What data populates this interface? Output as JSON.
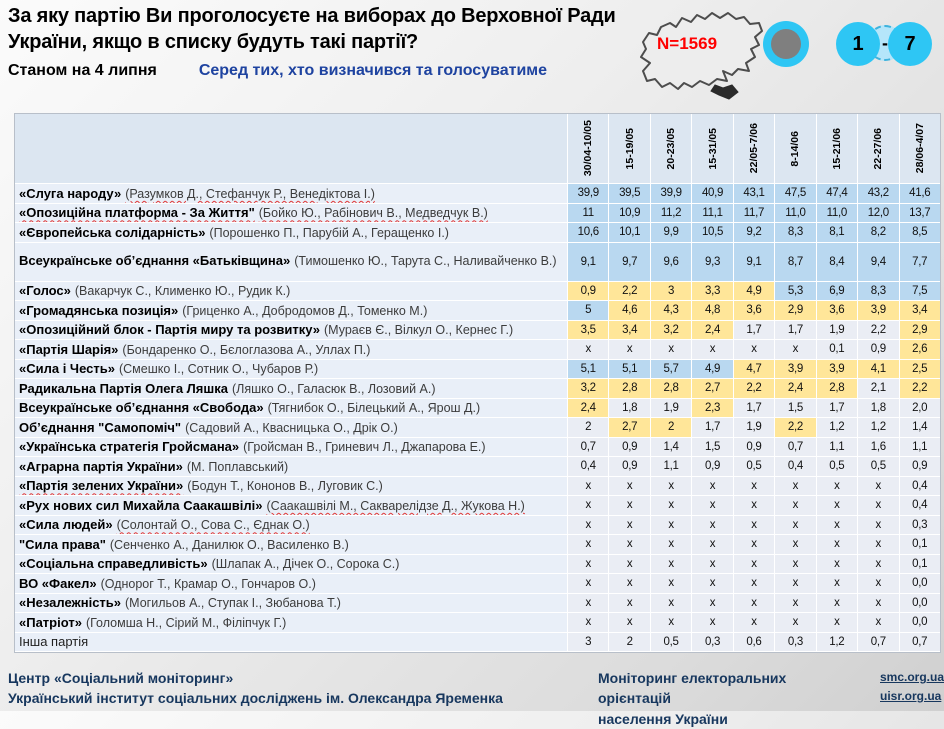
{
  "header": {
    "title": "За яку партію Ви проголосуєте на виборах до Верховної Ради України, якщо в списку будуть такі партії?",
    "date_note": "Станом на 4 липня",
    "subtitle": "Серед тих, хто визначився та голосуватиме",
    "sample_label": "N=1569",
    "wave_start": "1",
    "wave_dash": "-",
    "wave_end": "7"
  },
  "table": {
    "columns": [
      "30/04-10/05",
      "15-19/05",
      "20-23/05",
      "15-31/05",
      "22/05-7/06",
      "8-14/06",
      "15-21/06",
      "22-27/06",
      "28/06-4/07"
    ],
    "rows": [
      {
        "party": "«Слуга народу»",
        "leaders": "(Разумков Д.,  Стефанчук Р., Венедіктова І.)",
        "wavy_leaders": true,
        "values": [
          "39,9",
          "39,5",
          "39,9",
          "40,9",
          "43,1",
          "47,5",
          "47,4",
          "43,2",
          "41,6"
        ],
        "colors": [
          "b",
          "b",
          "b",
          "b",
          "b",
          "b",
          "b",
          "b",
          "b"
        ]
      },
      {
        "party": "«Опозиційна платформа - За Життя\"",
        "leaders": "(Бойко Ю., Рабінович В.,  Медведчук В.)",
        "wavy_name": true,
        "wavy_leaders": true,
        "values": [
          "11",
          "10,9",
          "11,2",
          "11,1",
          "11,7",
          "11,0",
          "11,0",
          "12,0",
          "13,7"
        ],
        "colors": [
          "b",
          "b",
          "b",
          "b",
          "b",
          "b",
          "b",
          "b",
          "b"
        ]
      },
      {
        "party": "«Європейська солідарність»",
        "leaders": "(Порошенко П., Парубій А., Геращенко І.)",
        "values": [
          "10,6",
          "10,1",
          "9,9",
          "10,5",
          "9,2",
          "8,3",
          "8,1",
          "8,2",
          "8,5"
        ],
        "colors": [
          "b",
          "b",
          "b",
          "b",
          "b",
          "b",
          "b",
          "b",
          "b"
        ]
      },
      {
        "party": "Всеукраїнське об’єднання «Батьківщина»",
        "leaders": "(Тимошенко Ю., Тарута С., Наливайченко В.)",
        "tall": true,
        "values": [
          "9,1",
          "9,7",
          "9,6",
          "9,3",
          "9,1",
          "8,7",
          "8,4",
          "9,4",
          "7,7"
        ],
        "colors": [
          "b",
          "b",
          "b",
          "b",
          "b",
          "b",
          "b",
          "b",
          "b"
        ]
      },
      {
        "party": "«Голос»",
        "leaders": "(Вакарчук С., Клименко Ю., Рудик К.)",
        "values": [
          "0,9",
          "2,2",
          "3",
          "3,3",
          "4,9",
          "5,3",
          "6,9",
          "8,3",
          "7,5"
        ],
        "colors": [
          "y",
          "y",
          "y",
          "y",
          "y",
          "b",
          "b",
          "b",
          "b"
        ]
      },
      {
        "party": "«Громадянська позиція»",
        "leaders": "(Гриценко А., Добродомов Д., Томенко М.)",
        "values": [
          "5",
          "4,6",
          "4,3",
          "4,8",
          "3,6",
          "2,9",
          "3,6",
          "3,9",
          "3,4"
        ],
        "colors": [
          "b",
          "y",
          "y",
          "y",
          "y",
          "y",
          "y",
          "y",
          "y"
        ]
      },
      {
        "party": "«Опозиційний блок - Партія миру та розвитку»",
        "leaders": "(Мураєв Є., Вілкул О., Кернес Г.)",
        "values": [
          "3,5",
          "3,4",
          "3,2",
          "2,4",
          "1,7",
          "1,7",
          "1,9",
          "2,2",
          "2,9"
        ],
        "colors": [
          "y",
          "y",
          "y",
          "y",
          "g",
          "g",
          "g",
          "g",
          "y"
        ]
      },
      {
        "party": "«Партія Шарія»",
        "leaders": "(Бондаренко О.,  Бєлоглазова А., Уллах П.)",
        "values": [
          "х",
          "х",
          "х",
          "х",
          "х",
          "х",
          "0,1",
          "0,9",
          "2,6"
        ],
        "colors": [
          "g",
          "g",
          "g",
          "g",
          "g",
          "g",
          "g",
          "g",
          "y"
        ]
      },
      {
        "party": "«Сила і Честь»",
        "leaders": "(Смешко І.,  Сотник О., Чубаров Р.)",
        "values": [
          "5,1",
          "5,1",
          "5,7",
          "4,9",
          "4,7",
          "3,9",
          "3,9",
          "4,1",
          "2,5"
        ],
        "colors": [
          "b",
          "b",
          "b",
          "b",
          "y",
          "y",
          "y",
          "y",
          "y"
        ]
      },
      {
        "party": "Радикальна Партія Олега Ляшка",
        "leaders": "(Ляшко О., Галасюк В., Лозовий А.)",
        "values": [
          "3,2",
          "2,8",
          "2,8",
          "2,7",
          "2,2",
          "2,4",
          "2,8",
          "2,1",
          "2,2"
        ],
        "colors": [
          "y",
          "y",
          "y",
          "y",
          "y",
          "y",
          "y",
          "g",
          "y"
        ]
      },
      {
        "party": "Всеукраїнське об’єднання «Свобода»",
        "leaders": "(Тягнибок О., Білецький А., Ярош Д.)",
        "values": [
          "2,4",
          "1,8",
          "1,9",
          "2,3",
          "1,7",
          "1,5",
          "1,7",
          "1,8",
          "2,0"
        ],
        "colors": [
          "y",
          "g",
          "g",
          "y",
          "g",
          "g",
          "g",
          "g",
          "g"
        ]
      },
      {
        "party": "Об’єднання \"Самопоміч\"",
        "leaders": "(Садовий А., Квасницька О., Дрік О.)",
        "values": [
          "2",
          "2,7",
          "2",
          "1,7",
          "1,9",
          "2,2",
          "1,2",
          "1,2",
          "1,4"
        ],
        "colors": [
          "g",
          "y",
          "y",
          "g",
          "g",
          "y",
          "g",
          "g",
          "g"
        ]
      },
      {
        "party": "«Українська стратегія Гройсмана»",
        "leaders": "(Гройсман В.,  Гриневич Л., Джапарова Е.)",
        "values": [
          "0,7",
          "0,9",
          "1,4",
          "1,5",
          "0,9",
          "0,7",
          "1,1",
          "1,6",
          "1,1"
        ],
        "colors": [
          "g",
          "g",
          "g",
          "g",
          "g",
          "g",
          "g",
          "g",
          "g"
        ]
      },
      {
        "party": "«Аграрна партія України»",
        "leaders": "(М. Поплавський)",
        "values": [
          "0,4",
          "0,9",
          "1,1",
          "0,9",
          "0,5",
          "0,4",
          "0,5",
          "0,5",
          "0,9"
        ],
        "colors": [
          "g",
          "g",
          "g",
          "g",
          "g",
          "g",
          "g",
          "g",
          "g"
        ]
      },
      {
        "party": "«Партія зелених України»",
        "leaders": "(Бодун Т., Кононов В., Луговик С.)",
        "wavy_name": true,
        "values": [
          "х",
          "х",
          "х",
          "х",
          "х",
          "х",
          "х",
          "х",
          "0,4"
        ],
        "colors": [
          "g",
          "g",
          "g",
          "g",
          "g",
          "g",
          "g",
          "g",
          "g"
        ]
      },
      {
        "party": "«Рух нових сил Михайла Саакашвілі»",
        "leaders": "(Саакашвілі М., Сакварелідзе Д., Жукова Н.)",
        "wavy_leaders": true,
        "values": [
          "х",
          "х",
          "х",
          "х",
          "х",
          "х",
          "х",
          "х",
          "0,4"
        ],
        "colors": [
          "g",
          "g",
          "g",
          "g",
          "g",
          "g",
          "g",
          "g",
          "g"
        ]
      },
      {
        "party": "«Сила людей»",
        "leaders": "(Солонтай О., Сова С., Єднак О.)",
        "wavy_leaders": true,
        "values": [
          "х",
          "х",
          "х",
          "х",
          "х",
          "х",
          "х",
          "х",
          "0,3"
        ],
        "colors": [
          "g",
          "g",
          "g",
          "g",
          "g",
          "g",
          "g",
          "g",
          "g"
        ]
      },
      {
        "party": "\"Сила права\"",
        "leaders": "(Сенченко А., Данилюк О., Василенко В.)",
        "values": [
          "х",
          "х",
          "х",
          "х",
          "х",
          "х",
          "х",
          "х",
          "0,1"
        ],
        "colors": [
          "g",
          "g",
          "g",
          "g",
          "g",
          "g",
          "g",
          "g",
          "g"
        ]
      },
      {
        "party": "«Соціальна справедливість»",
        "leaders": "(Шлапак А., Дічек  О., Сорока С.)",
        "values": [
          "х",
          "х",
          "х",
          "х",
          "х",
          "х",
          "х",
          "х",
          "0,1"
        ],
        "colors": [
          "g",
          "g",
          "g",
          "g",
          "g",
          "g",
          "g",
          "g",
          "g"
        ]
      },
      {
        "party": "ВО «Факел»",
        "leaders": "(Однорог Т., Крамар О., Гончаров О.)",
        "values": [
          "х",
          "х",
          "х",
          "х",
          "х",
          "х",
          "х",
          "х",
          "0,0"
        ],
        "colors": [
          "g",
          "g",
          "g",
          "g",
          "g",
          "g",
          "g",
          "g",
          "g"
        ]
      },
      {
        "party": "«Незалежність»",
        "leaders": "(Могильов А.,  Ступак І., Зюбанова Т.)",
        "values": [
          "х",
          "х",
          "х",
          "х",
          "х",
          "х",
          "х",
          "х",
          "0,0"
        ],
        "colors": [
          "g",
          "g",
          "g",
          "g",
          "g",
          "g",
          "g",
          "g",
          "g"
        ]
      },
      {
        "party": "«Патріот»",
        "leaders": "(Голомша Н.,  Сірий М., Філіпчук Г.)",
        "values": [
          "х",
          "х",
          "х",
          "х",
          "х",
          "х",
          "х",
          "х",
          "0,0"
        ],
        "colors": [
          "g",
          "g",
          "g",
          "g",
          "g",
          "g",
          "g",
          "g",
          "g"
        ]
      },
      {
        "party": "Інша партія",
        "leaders": "",
        "plain": true,
        "values": [
          "3",
          "2",
          "0,5",
          "0,3",
          "0,6",
          "0,3",
          "1,2",
          "0,7",
          "0,7"
        ],
        "colors": [
          "g",
          "g",
          "g",
          "g",
          "g",
          "g",
          "g",
          "g",
          "g"
        ]
      }
    ]
  },
  "footer": {
    "org_line1": "Центр «Соціальний моніторинг»",
    "org_line2": "Український інститут  соціальних досліджень  ім. Олександра Яременка",
    "project_line1": "Моніторинг електоральних орієнтацій",
    "project_line2": "населення України",
    "link1": "smc.org.ua",
    "link2": "uisr.org.ua"
  },
  "icons": {
    "map": "ukraine-map-icon",
    "ring": "sample-dot-icon",
    "wave": "wave-range-icon"
  },
  "colors": {
    "accent_cyan": "#2ec6f4",
    "cell_blue": "#b9d8f0",
    "cell_yellow": "#ffe699",
    "cell_gray": "#eaedf4",
    "header_cell": "#dce6f1",
    "name_cell": "#e9eff8",
    "navy": "#17375e",
    "subtitle_blue": "#1e43a0",
    "sample_red": "#ff0000"
  }
}
